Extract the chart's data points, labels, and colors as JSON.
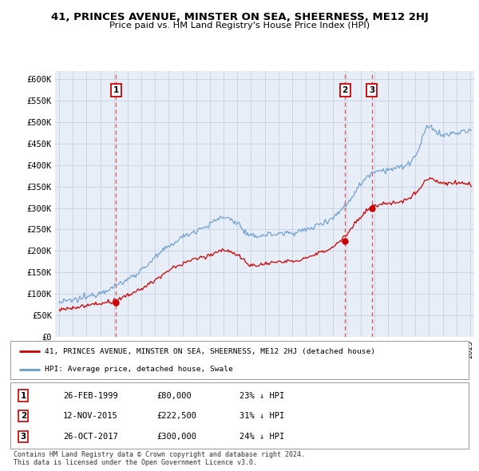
{
  "title": "41, PRINCES AVENUE, MINSTER ON SEA, SHEERNESS, ME12 2HJ",
  "subtitle": "Price paid vs. HM Land Registry's House Price Index (HPI)",
  "legend_line1": "41, PRINCES AVENUE, MINSTER ON SEA, SHEERNESS, ME12 2HJ (detached house)",
  "legend_line2": "HPI: Average price, detached house, Swale",
  "footer1": "Contains HM Land Registry data © Crown copyright and database right 2024.",
  "footer2": "This data is licensed under the Open Government Licence v3.0.",
  "transactions": [
    {
      "num": 1,
      "date": "26-FEB-1999",
      "price": "£80,000",
      "pct": "23% ↓ HPI",
      "year": 1999.15,
      "price_val": 80000
    },
    {
      "num": 2,
      "date": "12-NOV-2015",
      "price": "£222,500",
      "pct": "31% ↓ HPI",
      "year": 2015.87,
      "price_val": 222500
    },
    {
      "num": 3,
      "date": "26-OCT-2017",
      "price": "£300,000",
      "pct": "24% ↓ HPI",
      "year": 2017.82,
      "price_val": 300000
    }
  ],
  "vline_color": "#dd3333",
  "hpi_color": "#6699cc",
  "price_color": "#cc0000",
  "ylim": [
    0,
    620000
  ],
  "ytick_labels": [
    "£0",
    "£50K",
    "£100K",
    "£150K",
    "£200K",
    "£250K",
    "£300K",
    "£350K",
    "£400K",
    "£450K",
    "£500K",
    "£550K",
    "£600K"
  ],
  "xlim_start": 1994.7,
  "xlim_end": 2025.3,
  "background_color": "#e8eef8",
  "fig_bg": "#ffffff"
}
